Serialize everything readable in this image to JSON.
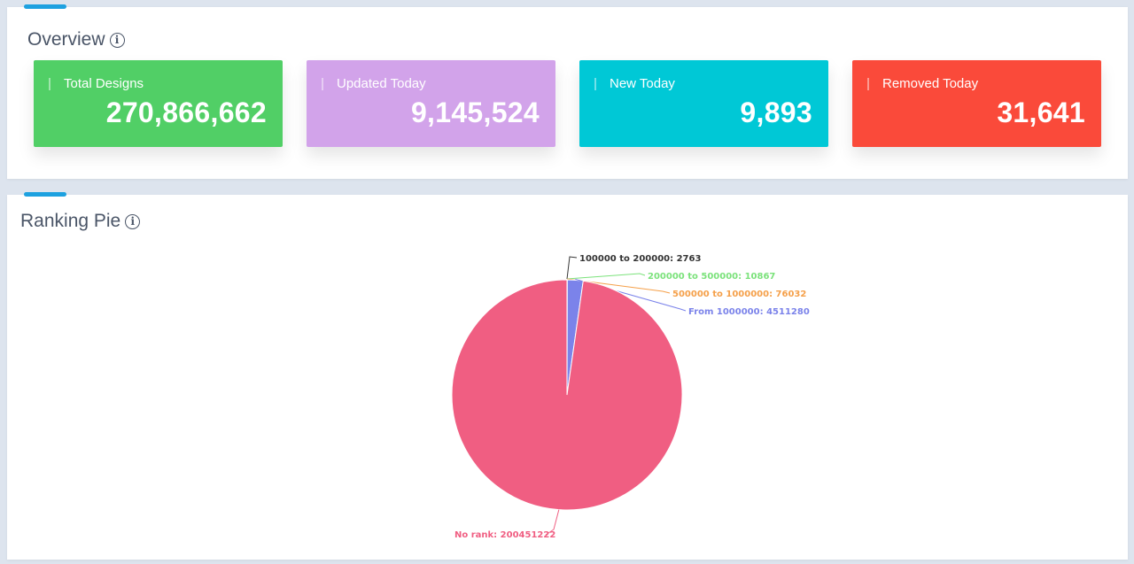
{
  "overview": {
    "title": "Overview",
    "cards": [
      {
        "label": "Total Designs",
        "value": "270,866,662",
        "color": "#51cf66"
      },
      {
        "label": "Updated Today",
        "value": "9,145,524",
        "color": "#d2a3ea"
      },
      {
        "label": "New Today",
        "value": "9,893",
        "color": "#00c8d6"
      },
      {
        "label": "Removed Today",
        "value": "31,641",
        "color": "#fa4a3a"
      }
    ]
  },
  "ranking": {
    "title": "Ranking Pie"
  },
  "icons": {
    "info": "info-circle-icon"
  },
  "chart_data": {
    "type": "pie",
    "slices": [
      {
        "name": "100000 to 200000",
        "value": 2763,
        "label": "100000 to 200000: 2763",
        "color": "#333333"
      },
      {
        "name": "200000 to 500000",
        "value": 10867,
        "label": "200000 to 500000: 10867",
        "color": "#7be27b"
      },
      {
        "name": "500000 to 1000000",
        "value": 76032,
        "label": "500000 to 1000000: 76032",
        "color": "#f5a04a"
      },
      {
        "name": "From 1000000",
        "value": 4511280,
        "label": "From 1000000: 4511280",
        "color": "#7b83ea"
      },
      {
        "name": "No rank",
        "value": 200451222,
        "label": "No rank: 200451222",
        "color": "#f05e82"
      }
    ]
  }
}
